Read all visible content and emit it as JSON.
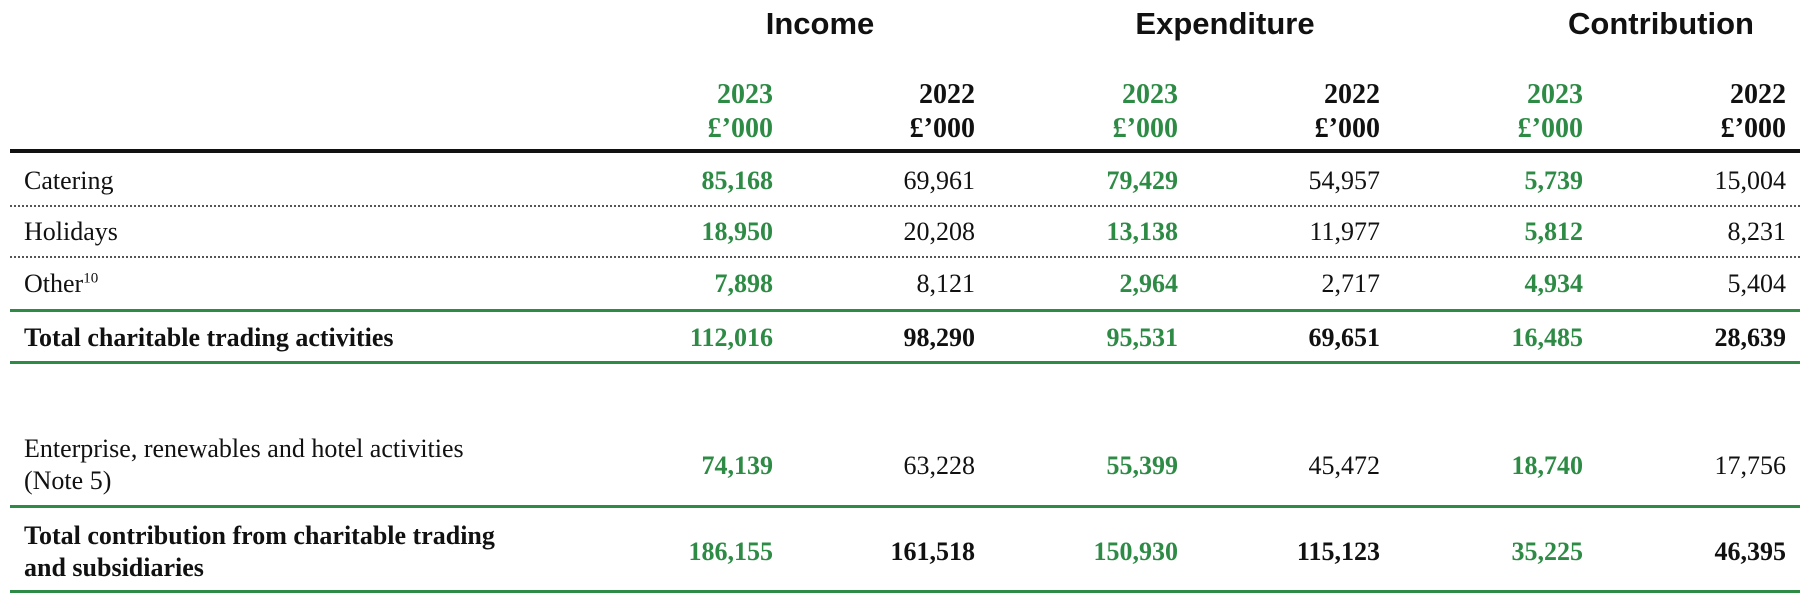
{
  "headers": {
    "groups": [
      "Income",
      "Expenditure",
      "Contribution"
    ],
    "year_current": "2023",
    "year_prior": "2022",
    "unit": "£’000"
  },
  "colors": {
    "accent": "#2e8b45",
    "text": "#111111"
  },
  "rows": [
    {
      "label": "Catering",
      "values": [
        "85,168",
        "69,961",
        "79,429",
        "54,957",
        "5,739",
        "15,004"
      ]
    },
    {
      "label": "Holidays",
      "values": [
        "18,950",
        "20,208",
        "13,138",
        "11,977",
        "5,812",
        "8,231"
      ]
    },
    {
      "label": "Other",
      "superscript": "10",
      "values": [
        "7,898",
        "8,121",
        "2,964",
        "2,717",
        "4,934",
        "5,404"
      ]
    },
    {
      "label": "Total charitable trading activities",
      "values": [
        "112,016",
        "98,290",
        "95,531",
        "69,651",
        "16,485",
        "28,639"
      ]
    },
    {
      "label_line1": "Enterprise, renewables and hotel activities",
      "label_line2": "(Note 5)",
      "values": [
        "74,139",
        "63,228",
        "55,399",
        "45,472",
        "18,740",
        "17,756"
      ]
    },
    {
      "label_line1": "Total contribution from charitable trading",
      "label_line2": "and subsidiaries",
      "values": [
        "186,155",
        "161,518",
        "150,930",
        "115,123",
        "35,225",
        "46,395"
      ]
    }
  ]
}
